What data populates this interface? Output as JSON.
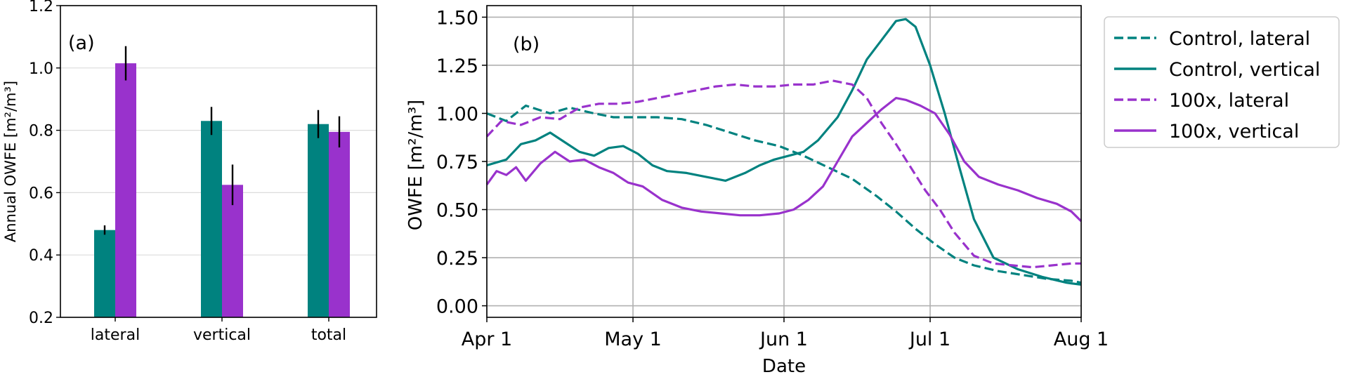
{
  "chart_data": [
    {
      "type": "bar",
      "panel_label": "(a)",
      "categories": [
        "lateral",
        "vertical",
        "total"
      ],
      "series": [
        {
          "color": "#00827f",
          "values": [
            0.48,
            0.83,
            0.82
          ],
          "errors": [
            0.015,
            0.045,
            0.045
          ]
        },
        {
          "color": "#9932cc",
          "values": [
            1.015,
            0.625,
            0.795
          ],
          "errors": [
            0.055,
            0.065,
            0.05
          ]
        }
      ],
      "ylabel": "Annual OWFE [m²/m³]",
      "ylim": [
        0.2,
        1.2
      ],
      "yticks": [
        "0.2",
        "0.4",
        "0.6",
        "0.8",
        "1.0",
        "1.2"
      ],
      "grid": "horizontal"
    },
    {
      "type": "line",
      "panel_label": "(b)",
      "xlabel": "Date",
      "ylabel": "OWFE [m²/m³]",
      "xlim": [
        "Apr 1",
        "Aug 1"
      ],
      "xticks": [
        "Apr 1",
        "May 1",
        "Jun 1",
        "Jul 1",
        "Aug 1"
      ],
      "ylim": [
        -0.06,
        1.56
      ],
      "yticks": [
        "0.00",
        "0.25",
        "0.50",
        "0.75",
        "1.00",
        "1.25",
        "1.50"
      ],
      "grid": "both",
      "legend_position": "outside-right",
      "series": [
        {
          "name": "Control, lateral",
          "color": "#00827f",
          "dash": "dashed",
          "x": [
            "Apr 1",
            "Apr 5",
            "Apr 9",
            "Apr 14",
            "Apr 18",
            "Apr 23",
            "Apr 27",
            "May 1",
            "May 6",
            "May 11",
            "May 16",
            "May 21",
            "May 26",
            "May 31",
            "Jun 5",
            "Jun 10",
            "Jun 15",
            "Jun 20",
            "Jun 24",
            "Jun 28",
            "Jul 2",
            "Jul 6",
            "Jul 10",
            "Jul 15",
            "Jul 20",
            "Jul 25",
            "Jul 30",
            "Aug 1"
          ],
          "y": [
            1.0,
            0.96,
            1.04,
            1.0,
            1.03,
            1.0,
            0.98,
            0.98,
            0.98,
            0.97,
            0.94,
            0.9,
            0.86,
            0.83,
            0.78,
            0.72,
            0.66,
            0.57,
            0.49,
            0.4,
            0.32,
            0.25,
            0.21,
            0.18,
            0.16,
            0.14,
            0.13,
            0.12
          ]
        },
        {
          "name": "Control, vertical",
          "color": "#00827f",
          "dash": "solid",
          "x": [
            "Apr 1",
            "Apr 5",
            "Apr 8",
            "Apr 11",
            "Apr 14",
            "Apr 17",
            "Apr 20",
            "Apr 23",
            "Apr 26",
            "Apr 29",
            "May 2",
            "May 5",
            "May 8",
            "May 12",
            "May 16",
            "May 20",
            "May 24",
            "May 27",
            "May 30",
            "Jun 2",
            "Jun 5",
            "Jun 8",
            "Jun 12",
            "Jun 15",
            "Jun 18",
            "Jun 21",
            "Jun 24",
            "Jun 26",
            "Jun 28",
            "Jul 1",
            "Jul 4",
            "Jul 7",
            "Jul 10",
            "Jul 14",
            "Jul 19",
            "Jul 24",
            "Jul 29",
            "Aug 1"
          ],
          "y": [
            0.73,
            0.76,
            0.84,
            0.86,
            0.9,
            0.85,
            0.8,
            0.78,
            0.82,
            0.83,
            0.79,
            0.73,
            0.7,
            0.69,
            0.67,
            0.65,
            0.69,
            0.73,
            0.76,
            0.78,
            0.8,
            0.86,
            0.98,
            1.12,
            1.28,
            1.38,
            1.48,
            1.49,
            1.45,
            1.25,
            1.0,
            0.72,
            0.45,
            0.25,
            0.19,
            0.15,
            0.12,
            0.11
          ]
        },
        {
          "name": "100x, lateral",
          "color": "#9932cc",
          "dash": "dashed",
          "x": [
            "Apr 1",
            "Apr 4",
            "Apr 8",
            "Apr 12",
            "Apr 16",
            "Apr 20",
            "Apr 24",
            "Apr 28",
            "May 2",
            "May 6",
            "May 10",
            "May 14",
            "May 18",
            "May 22",
            "May 26",
            "May 30",
            "Jun 3",
            "Jun 7",
            "Jun 11",
            "Jun 15",
            "Jun 18",
            "Jun 21",
            "Jun 24",
            "Jun 27",
            "Jun 30",
            "Jul 3",
            "Jul 6",
            "Jul 10",
            "Jul 14",
            "Jul 18",
            "Jul 22",
            "Jul 26",
            "Jul 30",
            "Aug 1"
          ],
          "y": [
            0.88,
            0.96,
            0.94,
            0.98,
            0.97,
            1.03,
            1.05,
            1.05,
            1.06,
            1.08,
            1.1,
            1.12,
            1.14,
            1.15,
            1.14,
            1.14,
            1.15,
            1.15,
            1.17,
            1.15,
            1.08,
            0.95,
            0.84,
            0.72,
            0.6,
            0.5,
            0.38,
            0.26,
            0.22,
            0.21,
            0.2,
            0.21,
            0.22,
            0.22
          ]
        },
        {
          "name": "100x, vertical",
          "color": "#9932cc",
          "dash": "solid",
          "x": [
            "Apr 1",
            "Apr 3",
            "Apr 5",
            "Apr 7",
            "Apr 9",
            "Apr 12",
            "Apr 15",
            "Apr 18",
            "Apr 21",
            "Apr 24",
            "Apr 27",
            "Apr 30",
            "May 3",
            "May 7",
            "May 11",
            "May 15",
            "May 19",
            "May 23",
            "May 27",
            "May 31",
            "Jun 3",
            "Jun 6",
            "Jun 9",
            "Jun 12",
            "Jun 15",
            "Jun 18",
            "Jun 21",
            "Jun 24",
            "Jun 26",
            "Jun 29",
            "Jul 2",
            "Jul 5",
            "Jul 8",
            "Jul 11",
            "Jul 15",
            "Jul 19",
            "Jul 23",
            "Jul 27",
            "Jul 30",
            "Aug 1"
          ],
          "y": [
            0.63,
            0.7,
            0.68,
            0.72,
            0.65,
            0.74,
            0.8,
            0.75,
            0.76,
            0.72,
            0.69,
            0.64,
            0.62,
            0.55,
            0.51,
            0.49,
            0.48,
            0.47,
            0.47,
            0.48,
            0.5,
            0.55,
            0.62,
            0.75,
            0.88,
            0.95,
            1.02,
            1.08,
            1.07,
            1.04,
            1.0,
            0.89,
            0.75,
            0.67,
            0.63,
            0.6,
            0.56,
            0.53,
            0.49,
            0.44
          ]
        }
      ]
    }
  ]
}
